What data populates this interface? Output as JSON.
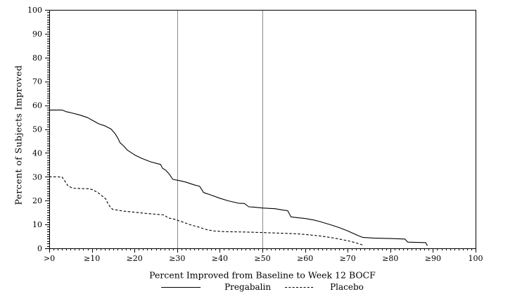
{
  "page": {
    "background": "#ffffff"
  },
  "chart_data": {
    "type": "line",
    "title": "",
    "xlabel": "Percent Improved from Baseline to Week 12 BOCF",
    "ylabel": "Percent of Subjects Improved",
    "xlim": [
      0,
      100
    ],
    "ylim": [
      0,
      100
    ],
    "grid": false,
    "legend_position": "bottom-center",
    "minor_tick_step": 1,
    "reference_lines_x": [
      30,
      50
    ],
    "ref_line_color": "#8c8c8c",
    "axis_color": "#000000",
    "x_ticks": [
      {
        "value": 0,
        "label": ">0"
      },
      {
        "value": 10,
        "label": "≥10"
      },
      {
        "value": 20,
        "label": "≥20"
      },
      {
        "value": 30,
        "label": "≥30"
      },
      {
        "value": 40,
        "label": "≥40"
      },
      {
        "value": 50,
        "label": "≥50"
      },
      {
        "value": 60,
        "label": "≥60"
      },
      {
        "value": 70,
        "label": "≥70"
      },
      {
        "value": 80,
        "label": "≥80"
      },
      {
        "value": 90,
        "label": "≥90"
      },
      {
        "value": 100,
        "label": "100"
      }
    ],
    "y_ticks": [
      {
        "value": 0,
        "label": "0"
      },
      {
        "value": 10,
        "label": "10"
      },
      {
        "value": 20,
        "label": "20"
      },
      {
        "value": 30,
        "label": "30"
      },
      {
        "value": 40,
        "label": "40"
      },
      {
        "value": 50,
        "label": "50"
      },
      {
        "value": 60,
        "label": "60"
      },
      {
        "value": 70,
        "label": "70"
      },
      {
        "value": 80,
        "label": "80"
      },
      {
        "value": 90,
        "label": "90"
      },
      {
        "value": 100,
        "label": "100"
      }
    ],
    "series": [
      {
        "name": "Pregabalin",
        "line_style": "solid",
        "color": "#000000",
        "points": [
          [
            0,
            58
          ],
          [
            3,
            58
          ],
          [
            4,
            57.3
          ],
          [
            5,
            56.9
          ],
          [
            7,
            56
          ],
          [
            9,
            54.8
          ],
          [
            10,
            53.8
          ],
          [
            11.6,
            52.2
          ],
          [
            13,
            51.4
          ],
          [
            14.5,
            50
          ],
          [
            15.4,
            48.2
          ],
          [
            16,
            46.5
          ],
          [
            16.6,
            44.3
          ],
          [
            17.5,
            42.8
          ],
          [
            18.3,
            41.2
          ],
          [
            20,
            39.2
          ],
          [
            21.6,
            37.8
          ],
          [
            23.7,
            36.3
          ],
          [
            25.4,
            35.5
          ],
          [
            26.1,
            35.2
          ],
          [
            26.6,
            33.5
          ],
          [
            27.3,
            32.8
          ],
          [
            28.2,
            31
          ],
          [
            29,
            28.9
          ],
          [
            30.5,
            28.4
          ],
          [
            32,
            27.8
          ],
          [
            34,
            26.6
          ],
          [
            35.3,
            26
          ],
          [
            36.2,
            23.4
          ],
          [
            38,
            22.3
          ],
          [
            40,
            21
          ],
          [
            42,
            19.9
          ],
          [
            44.4,
            18.9
          ],
          [
            45.8,
            18.8
          ],
          [
            46.8,
            17.4
          ],
          [
            48,
            17.3
          ],
          [
            50,
            16.9
          ],
          [
            53,
            16.6
          ],
          [
            55,
            16
          ],
          [
            55.9,
            15.8
          ],
          [
            56.7,
            13.2
          ],
          [
            58,
            12.9
          ],
          [
            60,
            12.5
          ],
          [
            62,
            11.9
          ],
          [
            63.5,
            11.2
          ],
          [
            66.3,
            9.7
          ],
          [
            68,
            8.7
          ],
          [
            70,
            7.3
          ],
          [
            72.5,
            5.3
          ],
          [
            73.5,
            4.6
          ],
          [
            76,
            4.3
          ],
          [
            80,
            4.1
          ],
          [
            83.4,
            3.9
          ],
          [
            84.1,
            2.6
          ],
          [
            88.3,
            2.4
          ],
          [
            88.7,
            1.1
          ]
        ]
      },
      {
        "name": "Placebo",
        "line_style": "dashed",
        "color": "#000000",
        "points": [
          [
            0,
            30
          ],
          [
            3,
            29.9
          ],
          [
            4.4,
            26.2
          ],
          [
            5.5,
            25.2
          ],
          [
            9.1,
            25
          ],
          [
            10,
            24.7
          ],
          [
            11.3,
            23.5
          ],
          [
            12.4,
            22
          ],
          [
            13.3,
            20.6
          ],
          [
            13.8,
            18.6
          ],
          [
            14.4,
            17.1
          ],
          [
            14.9,
            16.3
          ],
          [
            17.4,
            15.6
          ],
          [
            20.2,
            15.1
          ],
          [
            22.9,
            14.6
          ],
          [
            25.7,
            14.2
          ],
          [
            26.9,
            14
          ],
          [
            27.9,
            12.7
          ],
          [
            29,
            12.4
          ],
          [
            30,
            11.8
          ],
          [
            31.5,
            10.9
          ],
          [
            33,
            9.9
          ],
          [
            35.3,
            8.8
          ],
          [
            37,
            7.8
          ],
          [
            38.6,
            7.3
          ],
          [
            41,
            7
          ],
          [
            46.4,
            6.8
          ],
          [
            50,
            6.6
          ],
          [
            54.7,
            6.3
          ],
          [
            58,
            6.1
          ],
          [
            60,
            5.8
          ],
          [
            63.5,
            5.2
          ],
          [
            66.8,
            4.3
          ],
          [
            70,
            3.2
          ],
          [
            71.8,
            2.4
          ],
          [
            73.5,
            1.4
          ]
        ]
      }
    ]
  }
}
